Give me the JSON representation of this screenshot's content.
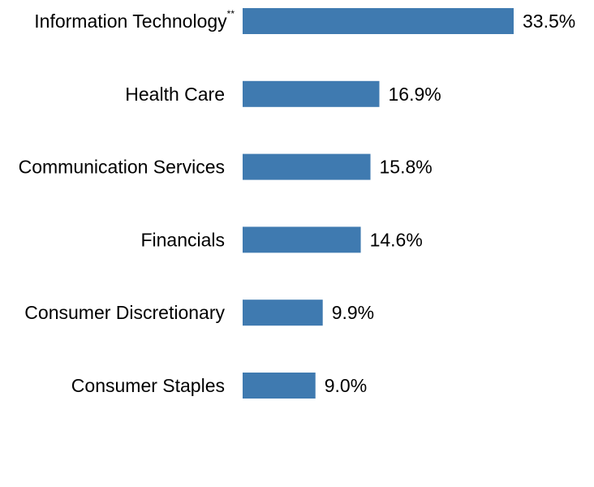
{
  "chart_data": {
    "type": "bar",
    "orientation": "horizontal",
    "title": "",
    "xlabel": "",
    "ylabel": "",
    "xlim": [
      0,
      33.5
    ],
    "grid": false,
    "legend": "none",
    "categories": [
      "Information Technology",
      "Health Care",
      "Communication Services",
      "Financials",
      "Consumer Discretionary",
      "Consumer Staples"
    ],
    "category_footnotes": [
      "**",
      "",
      "",
      "",
      "",
      ""
    ],
    "values": [
      33.5,
      16.9,
      15.8,
      14.6,
      9.9,
      9.0
    ],
    "value_labels": [
      "33.5%",
      "16.9%",
      "15.8%",
      "14.6%",
      "9.9%",
      "9.0%"
    ],
    "bar_color": "#3f7ab0"
  }
}
